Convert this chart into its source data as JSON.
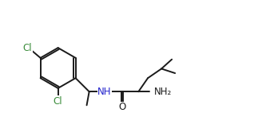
{
  "bg_color": "#ffffff",
  "bond_color": "#1a1a1a",
  "cl_color": "#3a8c3a",
  "nh_color": "#2222cc",
  "o_color": "#1a1a1a",
  "nh2_color": "#1a1a1a",
  "line_width": 1.4,
  "font_size": 8.5,
  "fig_width": 3.28,
  "fig_height": 1.71,
  "xlim": [
    0.0,
    10.5
  ],
  "ylim": [
    0.5,
    5.5
  ]
}
